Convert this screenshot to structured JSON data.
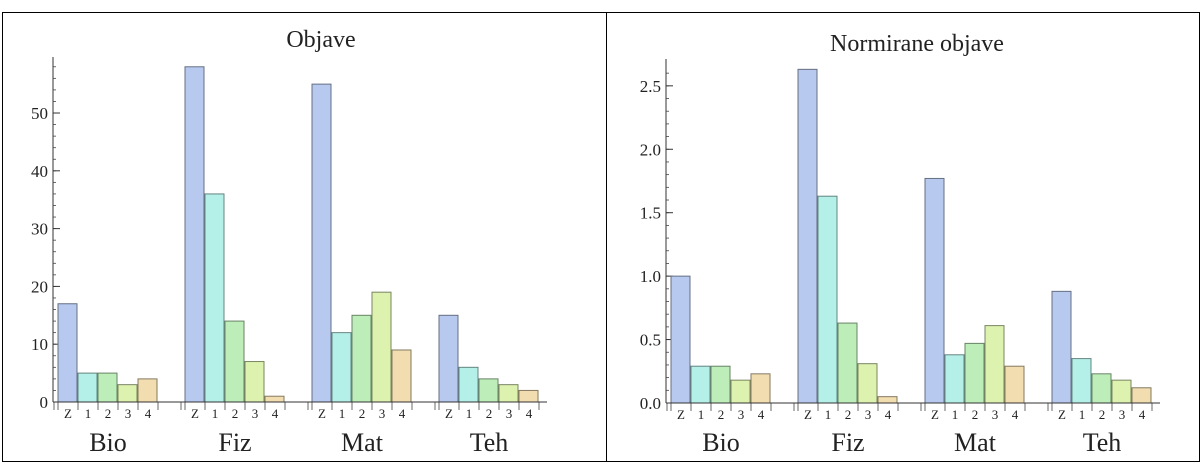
{
  "series_colors": [
    "#b7c9ee",
    "#b5f0e8",
    "#bdeeba",
    "#def2b0",
    "#f1ddb0"
  ],
  "chart_data": [
    {
      "type": "bar",
      "title": "Objave",
      "xlabel": "",
      "ylabel": "",
      "groups": [
        "Bio",
        "Fiz",
        "Mat",
        "Teh"
      ],
      "bar_labels": [
        "Z",
        "1",
        "2",
        "3",
        "4"
      ],
      "values": [
        [
          17,
          5,
          5,
          3,
          4
        ],
        [
          58,
          36,
          14,
          7,
          1
        ],
        [
          55,
          12,
          15,
          19,
          9
        ],
        [
          15,
          6,
          4,
          3,
          2
        ]
      ],
      "ylim": [
        0,
        59
      ],
      "yticks": [
        0,
        10,
        20,
        30,
        40,
        50
      ],
      "ytick_labels": [
        "0",
        "10",
        "20",
        "30",
        "40",
        "50"
      ],
      "yminor": 2,
      "grid": false
    },
    {
      "type": "bar",
      "title": "Normirane objave",
      "xlabel": "",
      "ylabel": "",
      "groups": [
        "Bio",
        "Fiz",
        "Mat",
        "Teh"
      ],
      "bar_labels": [
        "Z",
        "1",
        "2",
        "3",
        "4"
      ],
      "values": [
        [
          1.0,
          0.29,
          0.29,
          0.18,
          0.23
        ],
        [
          2.63,
          1.63,
          0.63,
          0.31,
          0.05
        ],
        [
          1.77,
          0.38,
          0.47,
          0.61,
          0.29
        ],
        [
          0.88,
          0.35,
          0.23,
          0.18,
          0.12
        ]
      ],
      "ylim": [
        0,
        2.68
      ],
      "yticks": [
        0.0,
        0.5,
        1.0,
        1.5,
        2.0,
        2.5
      ],
      "ytick_labels": [
        "0.0",
        "0.5",
        "1.0",
        "1.5",
        "2.0",
        "2.5"
      ],
      "yminor": 0.1,
      "grid": false
    }
  ]
}
